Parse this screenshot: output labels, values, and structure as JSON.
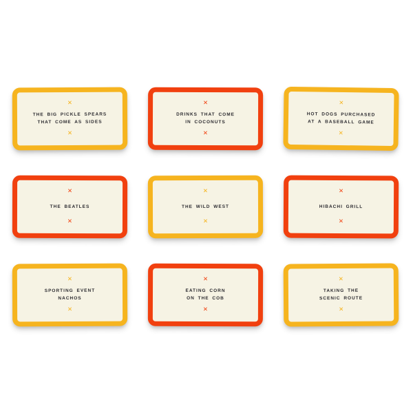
{
  "canvas": {
    "background": "#FFFFFF"
  },
  "palette": {
    "yellow_accent": "#F6B41F",
    "orange_accent": "#F1400F",
    "card_face": "#F6F3E4",
    "text_color": "#2D2C31"
  },
  "marker": {
    "glyph": "✕",
    "name": "x-marker"
  },
  "cards": [
    {
      "line1": "THE BIG PICKLE SPEARS",
      "line2": "THAT COME AS SIDES",
      "accent": "#F6B41F"
    },
    {
      "line1": "DRINKS THAT COME",
      "line2": "IN COCONUTS",
      "accent": "#F1400F"
    },
    {
      "line1": "HOT DOGS PURCHASED",
      "line2": "AT A BASEBALL GAME",
      "accent": "#F6B41F"
    },
    {
      "line1": "THE BEATLES",
      "line2": "",
      "accent": "#F1400F"
    },
    {
      "line1": "THE WILD WEST",
      "line2": "",
      "accent": "#F6B41F"
    },
    {
      "line1": "HIBACHI GRILL",
      "line2": "",
      "accent": "#F1400F"
    },
    {
      "line1": "SPORTING EVENT",
      "line2": "NACHOS",
      "accent": "#F6B41F"
    },
    {
      "line1": "EATING CORN",
      "line2": "ON THE COB",
      "accent": "#F1400F"
    },
    {
      "line1": "TAKING THE",
      "line2": "SCENIC ROUTE",
      "accent": "#F6B41F"
    }
  ]
}
